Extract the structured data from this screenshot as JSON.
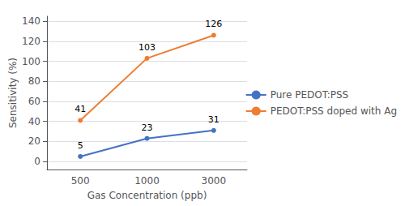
{
  "chart_data": {
    "type": "line",
    "x_label": "Gas Concentration (ppb)",
    "y_label": "Sensitivity (%)",
    "categories": [
      "500",
      "1000",
      "3000"
    ],
    "series": [
      {
        "name": "Pure PEDOT:PSS",
        "color": "#4472C4",
        "marker": "circle",
        "values": [
          5,
          23,
          31
        ]
      },
      {
        "name": "PEDOT:PSS doped with Ag",
        "color": "#ED7D31",
        "marker": "circle",
        "values": [
          41,
          103,
          126
        ]
      }
    ],
    "ylim": [
      -8,
      145
    ],
    "yticks": [
      0,
      20,
      40,
      60,
      80,
      100,
      120,
      140
    ],
    "grid": true,
    "legend": "right",
    "data_labels": true
  }
}
